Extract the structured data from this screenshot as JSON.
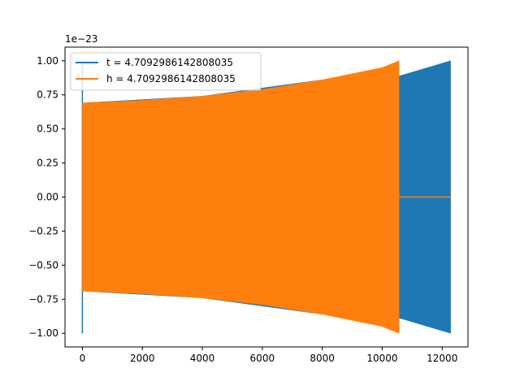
{
  "chart_data": {
    "type": "line",
    "title": "",
    "xlabel": "",
    "ylabel": "",
    "xlim": [
      -580,
      12860
    ],
    "ylim": [
      -1.1,
      1.1
    ],
    "y_multiplier_text": "1e−23",
    "x_ticks": [
      0,
      2000,
      4000,
      6000,
      8000,
      10000,
      12000
    ],
    "x_tick_labels": [
      "0",
      "2000",
      "4000",
      "6000",
      "8000",
      "10000",
      "12000"
    ],
    "y_ticks": [
      -1.0,
      -0.75,
      -0.5,
      -0.25,
      0.0,
      0.25,
      0.5,
      0.75,
      1.0
    ],
    "y_tick_labels": [
      "−1.00",
      "−0.75",
      "−0.50",
      "−0.25",
      "0.00",
      "0.25",
      "0.50",
      "0.75",
      "1.00"
    ],
    "grid": false,
    "legend_position": "top-left",
    "series": [
      {
        "name": "t = 4.7092986142808035",
        "color": "#1f77b4",
        "start_spike": {
          "x": 0,
          "ymin": -1.0,
          "ymax": 0.97
        },
        "envelope": {
          "x": [
            0,
            4000,
            8000,
            10600,
            12280
          ],
          "upper": [
            0.69,
            0.74,
            0.86,
            0.89,
            1.0
          ],
          "lower": [
            -0.69,
            -0.74,
            -0.86,
            -0.89,
            -1.0
          ]
        },
        "x_end": 12280
      },
      {
        "name": "h = 4.7092986142808035",
        "color": "#ff7f0e",
        "envelope": {
          "x": [
            0,
            2000,
            4000,
            6000,
            8000,
            10000,
            10560
          ],
          "upper": [
            0.69,
            0.71,
            0.74,
            0.79,
            0.86,
            0.95,
            1.0
          ],
          "lower": [
            -0.69,
            -0.71,
            -0.74,
            -0.79,
            -0.86,
            -0.95,
            -1.0
          ]
        },
        "zero_tail": {
          "x_start": 10560,
          "x_end": 12280,
          "y": 0
        }
      }
    ]
  }
}
